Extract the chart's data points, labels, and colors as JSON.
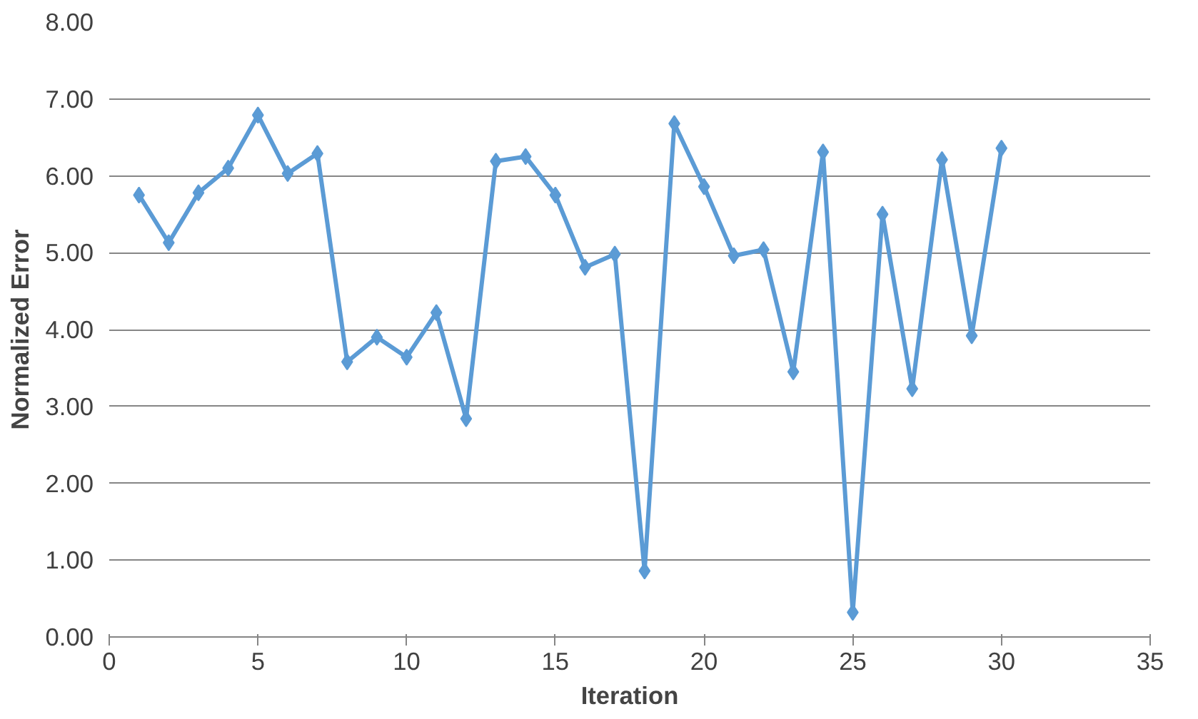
{
  "chart_data": {
    "type": "line",
    "xlabel": "Iteration",
    "ylabel": "Normalized Error",
    "x": [
      1,
      2,
      3,
      4,
      5,
      6,
      7,
      8,
      9,
      10,
      11,
      12,
      13,
      14,
      15,
      16,
      17,
      18,
      19,
      20,
      21,
      22,
      23,
      24,
      25,
      26,
      27,
      28,
      29,
      30
    ],
    "series": [
      {
        "color": "#5b9bd5",
        "values": [
          5.75,
          5.13,
          5.78,
          6.1,
          6.79,
          6.03,
          6.29,
          3.58,
          3.9,
          3.64,
          4.22,
          2.84,
          6.19,
          6.25,
          5.75,
          4.81,
          4.98,
          0.86,
          6.68,
          5.86,
          4.96,
          5.04,
          3.45,
          6.31,
          0.32,
          5.5,
          3.23,
          6.21,
          3.92,
          6.36
        ]
      }
    ],
    "xlim": [
      0,
      35
    ],
    "xticks": [
      0,
      5,
      10,
      15,
      20,
      25,
      30,
      35
    ],
    "ylim": [
      0,
      8
    ],
    "yticks": [
      {
        "value": 0,
        "label": "0.00"
      },
      {
        "value": 1,
        "label": "1.00"
      },
      {
        "value": 2,
        "label": "2.00"
      },
      {
        "value": 3,
        "label": "3.00"
      },
      {
        "value": 4,
        "label": "4.00"
      },
      {
        "value": 5,
        "label": "5.00"
      },
      {
        "value": 6,
        "label": "6.00"
      },
      {
        "value": 7,
        "label": "7.00"
      },
      {
        "value": 8,
        "label": "8.00"
      }
    ],
    "grid": "y",
    "marker": "diamond",
    "line_style": "solid"
  }
}
